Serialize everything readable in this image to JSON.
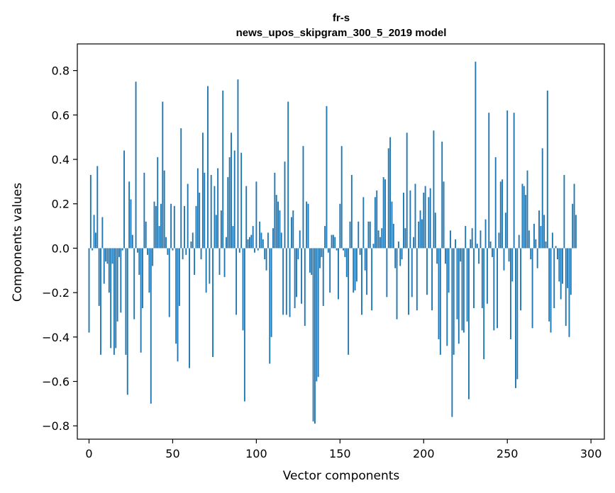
{
  "chart_data": {
    "type": "bar",
    "title": "fr-s",
    "subtitle": "news_upos_skipgram_300_5_2019 model",
    "xlabel": "Vector components",
    "ylabel": "Components values",
    "xlim": [
      -7,
      308
    ],
    "ylim": [
      -0.86,
      0.92
    ],
    "xticks": [
      0,
      50,
      100,
      150,
      200,
      250,
      300
    ],
    "xtick_labels": [
      "0",
      "50",
      "100",
      "150",
      "200",
      "250",
      "300"
    ],
    "yticks": [
      -0.8,
      -0.6,
      -0.4,
      -0.2,
      0.0,
      0.2,
      0.4,
      0.6,
      0.8
    ],
    "ytick_labels": [
      "−0.8",
      "−0.6",
      "−0.4",
      "−0.2",
      "0.0",
      "0.2",
      "0.4",
      "0.6",
      "0.8"
    ],
    "bar_color": "#1f77b4",
    "grid": false,
    "values": [
      -0.38,
      0.33,
      -0.01,
      0.15,
      0.07,
      0.37,
      -0.26,
      -0.48,
      0.14,
      -0.16,
      -0.06,
      -0.07,
      -0.2,
      -0.45,
      -0.07,
      -0.48,
      -0.45,
      -0.33,
      -0.04,
      -0.29,
      -0.01,
      0.44,
      -0.48,
      -0.66,
      0.3,
      0.22,
      0.06,
      -0.32,
      0.75,
      -0.02,
      -0.12,
      -0.47,
      -0.27,
      0.34,
      0.12,
      -0.03,
      -0.2,
      -0.7,
      -0.08,
      0.21,
      0.19,
      0.41,
      0.1,
      0.2,
      0.66,
      0.35,
      0.05,
      -0.03,
      -0.31,
      0.2,
      -0.01,
      0.19,
      -0.43,
      -0.51,
      -0.26,
      0.54,
      -0.05,
      0.19,
      -0.03,
      0.29,
      -0.54,
      0.03,
      0.07,
      -0.12,
      0.19,
      0.36,
      0.25,
      -0.05,
      0.52,
      0.34,
      -0.2,
      0.73,
      -0.16,
      0.33,
      -0.49,
      0.28,
      0.15,
      0.36,
      -0.12,
      0.17,
      0.71,
      -0.13,
      0.05,
      0.32,
      0.41,
      0.52,
      0.1,
      0.44,
      -0.3,
      0.76,
      -0.02,
      0.43,
      -0.37,
      -0.69,
      0.28,
      0.04,
      0.05,
      0.06,
      0.1,
      -0.02,
      0.3,
      -0.01,
      0.12,
      0.07,
      0.04,
      -0.05,
      -0.1,
      0.07,
      -0.52,
      -0.4,
      0.09,
      0.34,
      0.24,
      0.21,
      0.17,
      0.07,
      -0.3,
      0.39,
      -0.3,
      0.66,
      -0.31,
      0.14,
      0.17,
      -0.27,
      -0.22,
      -0.05,
      0.08,
      -0.25,
      0.46,
      -0.35,
      0.21,
      0.2,
      -0.11,
      -0.12,
      -0.78,
      -0.79,
      -0.6,
      -0.58,
      -0.09,
      -0.04,
      -0.26,
      0.1,
      0.64,
      -0.02,
      -0.2,
      0.06,
      0.06,
      0.05,
      -0.01,
      -0.23,
      0.2,
      0.46,
      -0.01,
      -0.04,
      -0.13,
      -0.48,
      0.12,
      0.33,
      -0.2,
      -0.19,
      -0.15,
      0.12,
      -0.03,
      -0.3,
      0.23,
      -0.1,
      -0.21,
      0.12,
      0.12,
      -0.28,
      0.02,
      0.23,
      0.26,
      0.08,
      0.05,
      0.09,
      0.32,
      0.31,
      -0.22,
      0.45,
      0.5,
      0.21,
      0.11,
      -0.09,
      -0.32,
      0.03,
      -0.08,
      -0.05,
      0.25,
      0.09,
      0.52,
      -0.3,
      0.26,
      -0.22,
      0.05,
      0.29,
      -0.28,
      0.12,
      0.17,
      0.13,
      0.25,
      0.28,
      -0.21,
      0.23,
      0.27,
      -0.28,
      0.53,
      0.16,
      -0.07,
      -0.41,
      -0.48,
      0.48,
      0.3,
      -0.07,
      -0.44,
      -0.2,
      0.08,
      -0.76,
      -0.48,
      0.04,
      -0.32,
      -0.43,
      -0.06,
      -0.37,
      -0.38,
      0.1,
      -0.33,
      -0.68,
      0.04,
      0.09,
      -0.27,
      0.84,
      0.02,
      -0.07,
      0.08,
      -0.27,
      -0.5,
      0.13,
      -0.25,
      0.61,
      0.03,
      -0.04,
      -0.37,
      0.41,
      -0.36,
      0.07,
      0.3,
      0.31,
      -0.1,
      0.16,
      0.62,
      -0.06,
      -0.41,
      -0.15,
      0.61,
      -0.63,
      -0.59,
      0.06,
      -0.28,
      0.29,
      0.28,
      0.24,
      0.35,
      0.08,
      -0.05,
      -0.36,
      0.11,
      0.04,
      -0.09,
      0.17,
      0.1,
      0.45,
      0.15,
      0.03,
      0.71,
      -0.33,
      -0.38,
      0.07,
      -0.27,
      0.01,
      -0.05,
      -0.15,
      -0.23,
      -0.16,
      0.33,
      -0.35,
      -0.18,
      -0.4,
      -0.21,
      0.2,
      0.29,
      0.15
    ]
  }
}
